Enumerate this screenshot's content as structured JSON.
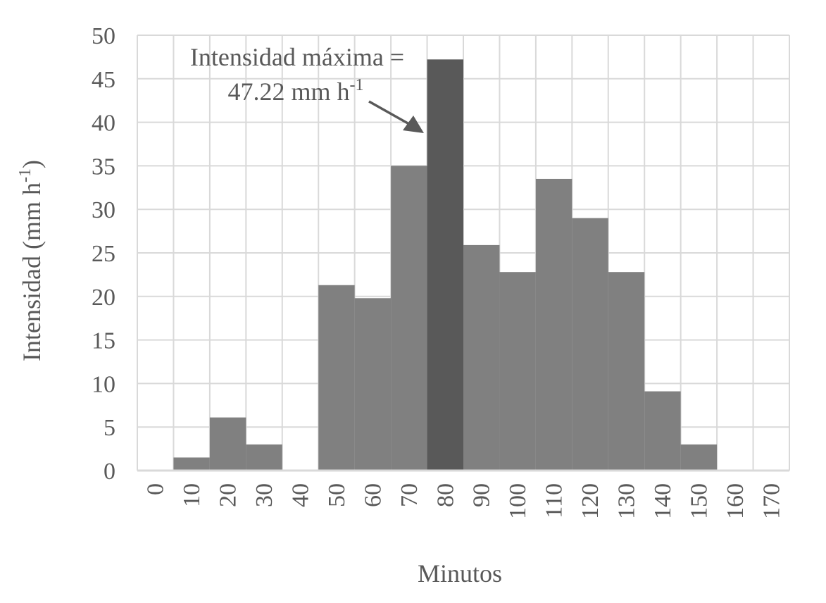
{
  "chart_data": {
    "type": "bar",
    "title": "",
    "xlabel": "Minutos",
    "ylabel": "Intensidad  (mm h-1)",
    "ylabel_parts": {
      "main": "Intensidad  (mm h",
      "sup": "-1",
      "close": ")"
    },
    "ylim": [
      0,
      50
    ],
    "yticks": [
      0,
      5,
      10,
      15,
      20,
      25,
      30,
      35,
      40,
      45,
      50
    ],
    "grid": true,
    "legend": null,
    "bar_gap": 0,
    "categories": [
      "0",
      "10",
      "20",
      "30",
      "40",
      "50",
      "60",
      "70",
      "80",
      "90",
      "100",
      "110",
      "120",
      "130",
      "140",
      "150",
      "160",
      "170"
    ],
    "series": [
      {
        "name": "Intensidad",
        "values": [
          0,
          1.5,
          6.1,
          3.0,
          0,
          21.3,
          19.8,
          35.0,
          47.22,
          25.9,
          22.8,
          33.5,
          29.0,
          22.8,
          9.1,
          3.0,
          0,
          0
        ]
      }
    ],
    "highlight_index": 8,
    "annotations": [
      {
        "line1": "Intensidad  máxima =",
        "line2_main": "47.22 mm h",
        "line2_sup": "-1",
        "points_to": "80"
      }
    ],
    "colors": {
      "bar": "#808080",
      "highlight_bar": "#595959",
      "grid": "#d9d9d9",
      "text": "#595959",
      "arrow": "#595959"
    }
  }
}
